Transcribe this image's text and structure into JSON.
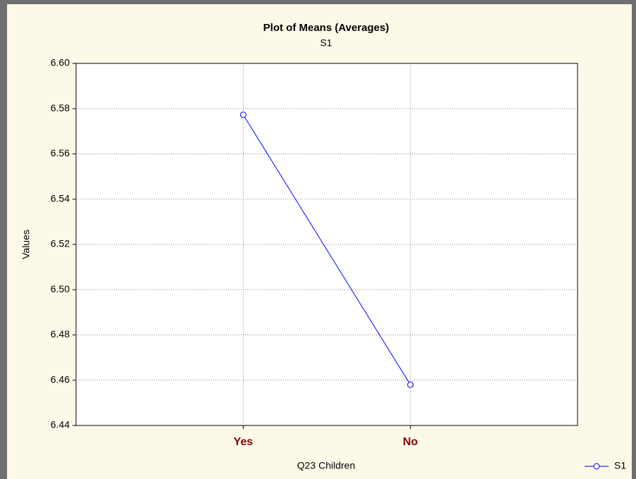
{
  "chart_data": {
    "type": "line",
    "title": "Plot of Means (Averages)",
    "subtitle": "S1",
    "x_label": "Q23 Children",
    "y_label": "Values",
    "categories": [
      "Yes",
      "No"
    ],
    "series": [
      {
        "name": "S1",
        "color": "#0000ff",
        "values": [
          6.5773,
          6.458
        ]
      }
    ],
    "ylim": [
      6.44,
      6.6
    ],
    "yticks": [
      {
        "value": 6.44,
        "label": "6.44"
      },
      {
        "value": 6.46,
        "label": "6.46"
      },
      {
        "value": 6.48,
        "label": "6.48"
      },
      {
        "value": 6.5,
        "label": "6.50"
      },
      {
        "value": 6.52,
        "label": "6.52"
      },
      {
        "value": 6.54,
        "label": "6.54"
      },
      {
        "value": 6.56,
        "label": "6.56"
      },
      {
        "value": 6.58,
        "label": "6.58"
      },
      {
        "value": 6.6,
        "label": "6.60"
      }
    ],
    "grid": true,
    "legend": "bottom-right"
  }
}
